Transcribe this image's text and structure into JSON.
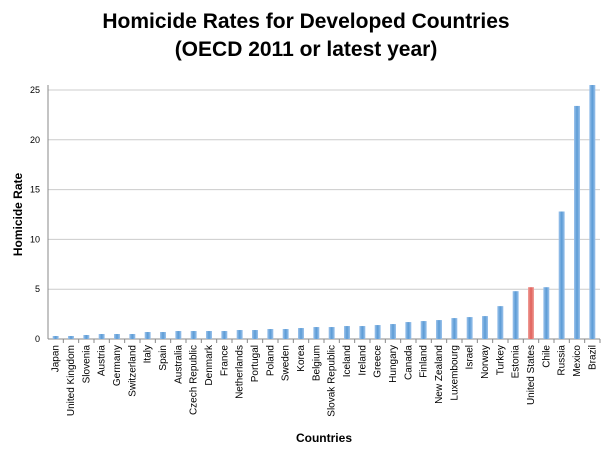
{
  "chart_data": {
    "type": "bar",
    "title": "Homicide Rates for Developed Countries",
    "subtitle": "(OECD 2011 or latest year)",
    "xlabel": "Countries",
    "ylabel": "Homicide Rate",
    "ylim": [
      0,
      25
    ],
    "yticks": [
      "0",
      "5",
      "10",
      "15",
      "20",
      "25"
    ],
    "grid": true,
    "colors": {
      "default": "#5b9bd5",
      "highlight": "#e0605a"
    },
    "highlight": "United States",
    "categories": [
      "Japan",
      "United Kingdom",
      "Slovenia",
      "Austria",
      "Germany",
      "Switzerland",
      "Italy",
      "Spain",
      "Australia",
      "Czech Republic",
      "Denmark",
      "France",
      "Netherlands",
      "Portugal",
      "Poland",
      "Sweden",
      "Korea",
      "Belgium",
      "Slovak Republic",
      "Iceland",
      "Ireland",
      "Greece",
      "Hungary",
      "Canada",
      "Finland",
      "New Zealand",
      "Luxembourg",
      "Israel",
      "Norway",
      "Turkey",
      "Estonia",
      "United States",
      "Chile",
      "Russia",
      "Mexico",
      "Brazil"
    ],
    "values": [
      0.3,
      0.3,
      0.4,
      0.5,
      0.5,
      0.5,
      0.7,
      0.7,
      0.8,
      0.8,
      0.8,
      0.8,
      0.9,
      0.9,
      1.0,
      1.0,
      1.1,
      1.2,
      1.2,
      1.3,
      1.3,
      1.4,
      1.5,
      1.7,
      1.8,
      1.9,
      2.1,
      2.2,
      2.3,
      3.3,
      4.8,
      5.2,
      5.2,
      12.8,
      23.4,
      25.5
    ]
  }
}
